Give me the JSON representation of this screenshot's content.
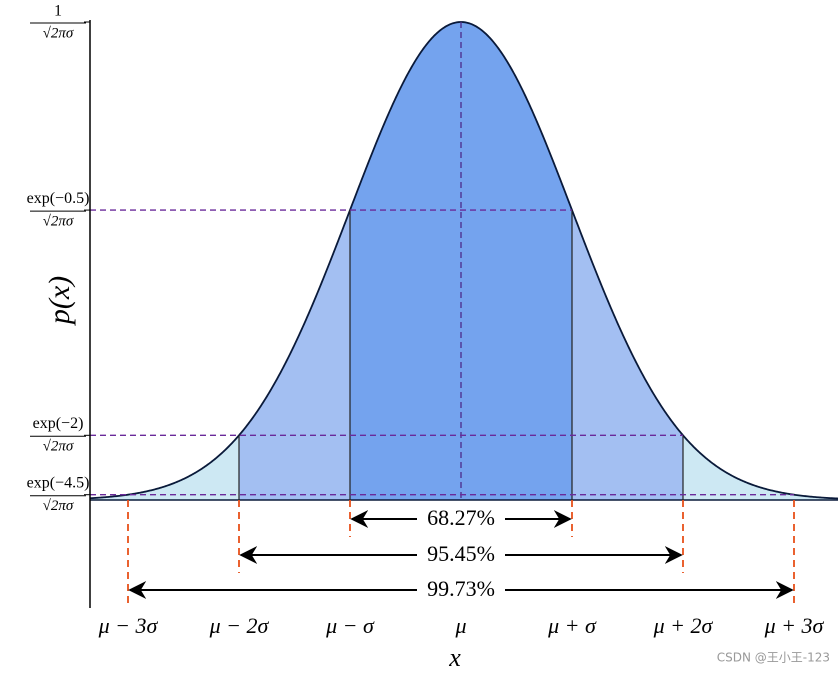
{
  "y_axis": {
    "label": "p(x)",
    "ticks": [
      {
        "numerator": "1",
        "denominator": "√2πσ"
      },
      {
        "numerator": "exp(−0.5)",
        "denominator": "√2πσ"
      },
      {
        "numerator": "exp(−2)",
        "denominator": "√2πσ"
      },
      {
        "numerator": "exp(−4.5)",
        "denominator": "√2πσ"
      }
    ]
  },
  "x_axis": {
    "label": "x",
    "ticks": [
      "μ − 3σ",
      "μ − 2σ",
      "μ − σ",
      "μ",
      "μ + σ",
      "μ + 2σ",
      "μ + 3σ"
    ]
  },
  "intervals": [
    "68.27%",
    "95.45%",
    "99.73%"
  ],
  "watermark": "CSDN @王小王-123"
}
